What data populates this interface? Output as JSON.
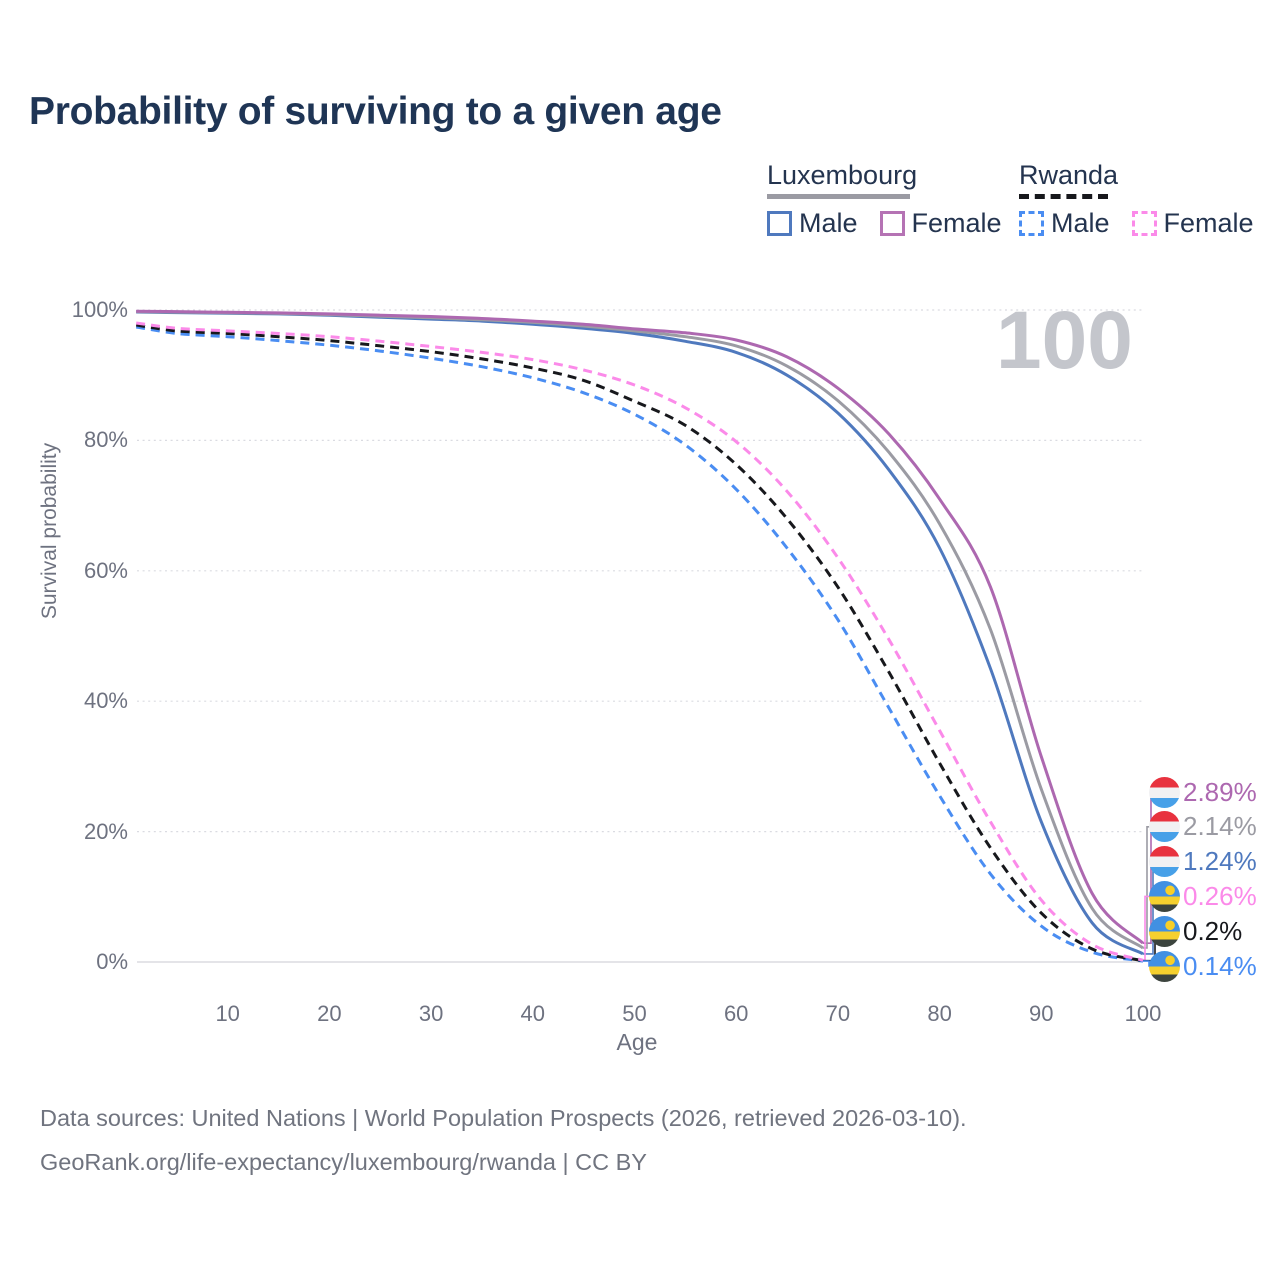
{
  "title": "Probability of surviving to a given age",
  "watermark": "100",
  "colors": {
    "background": "#ffffff",
    "title_text": "#1f3555",
    "axis_text": "#6e7280",
    "grid": "#dadbe1",
    "baseline": "#d3d4da",
    "watermark": "#c4c6cc",
    "footer_text": "#70747f"
  },
  "legend": {
    "groups": [
      {
        "name": "Luxembourg",
        "line_style": "solid",
        "underline_color": "#9b9ba3",
        "items": [
          {
            "label": "Male",
            "color": "#4f79be"
          },
          {
            "label": "Female",
            "color": "#b573b4"
          }
        ]
      },
      {
        "name": "Rwanda",
        "line_style": "dashed",
        "underline_color": "#17181c",
        "items": [
          {
            "label": "Male",
            "color": "#4a8df2"
          },
          {
            "label": "Female",
            "color": "#fb8ae9"
          }
        ]
      }
    ]
  },
  "chart_data": {
    "type": "line",
    "title": "Probability of surviving to a given age",
    "xlabel": "Age",
    "ylabel": "Survival probability",
    "xlim": [
      1,
      100
    ],
    "ylim": [
      0,
      100
    ],
    "grid": "horizontal dotted lines at 0/20/40/60/80/100%",
    "legend_position": "top-right",
    "x_ticks": [
      {
        "value": 10,
        "label": "10"
      },
      {
        "value": 20,
        "label": "20"
      },
      {
        "value": 30,
        "label": "30"
      },
      {
        "value": 40,
        "label": "40"
      },
      {
        "value": 50,
        "label": "50"
      },
      {
        "value": 60,
        "label": "60"
      },
      {
        "value": 70,
        "label": "70"
      },
      {
        "value": 80,
        "label": "80"
      },
      {
        "value": 90,
        "label": "90"
      },
      {
        "value": 100,
        "label": "100"
      }
    ],
    "y_ticks": [
      {
        "value": 0,
        "label": "0%"
      },
      {
        "value": 20,
        "label": "20%"
      },
      {
        "value": 40,
        "label": "40%"
      },
      {
        "value": 60,
        "label": "60%"
      },
      {
        "value": 80,
        "label": "80%"
      },
      {
        "value": 100,
        "label": "100%"
      }
    ],
    "ages": [
      1,
      5,
      10,
      15,
      20,
      25,
      30,
      35,
      40,
      45,
      50,
      55,
      60,
      65,
      70,
      75,
      80,
      85,
      90,
      95,
      100
    ],
    "series": [
      {
        "id": "luxembourg-male",
        "country": "Luxembourg",
        "group": "Male",
        "color": "#4f79be",
        "dashed": false,
        "end_label": "1.24%",
        "values": [
          99.7,
          99.6,
          99.5,
          99.4,
          99.2,
          98.9,
          98.6,
          98.3,
          97.8,
          97.2,
          96.4,
          95.2,
          93.5,
          90.0,
          84.2,
          75.5,
          63.5,
          45.0,
          21.5,
          6.0,
          1.24
        ]
      },
      {
        "id": "luxembourg-all",
        "country": "Luxembourg",
        "group": "Both sexes",
        "color": "#9b9ba3",
        "dashed": false,
        "end_label": "2.14%",
        "values": [
          99.75,
          99.68,
          99.58,
          99.48,
          99.3,
          99.05,
          98.8,
          98.5,
          98.1,
          97.55,
          96.8,
          95.9,
          94.5,
          91.4,
          86.1,
          78.2,
          67.2,
          51.0,
          26.5,
          8.2,
          2.14
        ]
      },
      {
        "id": "luxembourg-female",
        "country": "Luxembourg",
        "group": "Female",
        "color": "#ad68b0",
        "dashed": false,
        "end_label": "2.89%",
        "values": [
          99.8,
          99.75,
          99.65,
          99.55,
          99.4,
          99.2,
          99.0,
          98.7,
          98.3,
          97.8,
          97.1,
          96.5,
          95.4,
          92.8,
          88.0,
          81.0,
          71.0,
          57.5,
          31.5,
          10.5,
          2.89
        ]
      },
      {
        "id": "rwanda-male",
        "country": "Rwanda",
        "group": "Male",
        "color": "#4a8df2",
        "dashed": true,
        "end_label": "0.14%",
        "values": [
          97.4,
          96.4,
          95.9,
          95.3,
          94.6,
          93.7,
          92.6,
          91.3,
          89.6,
          87.3,
          84.0,
          79.3,
          72.5,
          63.5,
          52.5,
          39.0,
          25.5,
          13.5,
          5.5,
          1.5,
          0.14
        ]
      },
      {
        "id": "rwanda-all",
        "country": "Rwanda",
        "group": "Both sexes",
        "color": "#17181c",
        "dashed": true,
        "end_label": "0.2%",
        "values": [
          97.7,
          96.8,
          96.4,
          95.9,
          95.3,
          94.5,
          93.6,
          92.5,
          91.1,
          89.2,
          86.0,
          82.3,
          76.3,
          68.0,
          57.5,
          44.5,
          30.5,
          17.5,
          7.5,
          2.0,
          0.2
        ]
      },
      {
        "id": "rwanda-female",
        "country": "Rwanda",
        "group": "Female",
        "color": "#fb8ae9",
        "dashed": true,
        "end_label": "0.26%",
        "values": [
          98.0,
          97.2,
          96.8,
          96.4,
          95.9,
          95.2,
          94.4,
          93.5,
          92.4,
          90.8,
          88.5,
          85.0,
          79.8,
          72.2,
          62.0,
          49.5,
          35.5,
          21.5,
          9.5,
          2.7,
          0.26
        ]
      }
    ],
    "watermark": "100"
  },
  "end_labels": [
    {
      "text": "2.89%",
      "series": "luxembourg-female",
      "flag": "luxembourg",
      "color": "#ad68b0"
    },
    {
      "text": "2.14%",
      "series": "luxembourg-all",
      "flag": "luxembourg",
      "color": "#9b9ba3"
    },
    {
      "text": "1.24%",
      "series": "luxembourg-male",
      "flag": "luxembourg",
      "color": "#4f79be"
    },
    {
      "text": "0.26%",
      "series": "rwanda-female",
      "flag": "rwanda",
      "color": "#fb8ae9"
    },
    {
      "text": "0.2%",
      "series": "rwanda-all",
      "flag": "rwanda",
      "color": "#17181c"
    },
    {
      "text": "0.14%",
      "series": "rwanda-male",
      "flag": "rwanda",
      "color": "#4a8df2"
    }
  ],
  "flags": {
    "luxembourg": {
      "top": "#e8323f",
      "middle": "#f1f1f3",
      "bottom": "#47a0e8"
    },
    "rwanda": {
      "top": "#4190e2",
      "band": "#f5d02e",
      "bottom": "#3c443e",
      "sun": "#f8cf27"
    }
  },
  "footer": {
    "line1": "Data sources: United Nations | World Population Prospects (2026, retrieved 2026-03-10).",
    "line2": "GeoRank.org/life-expectancy/luxembourg/rwanda | CC BY"
  }
}
